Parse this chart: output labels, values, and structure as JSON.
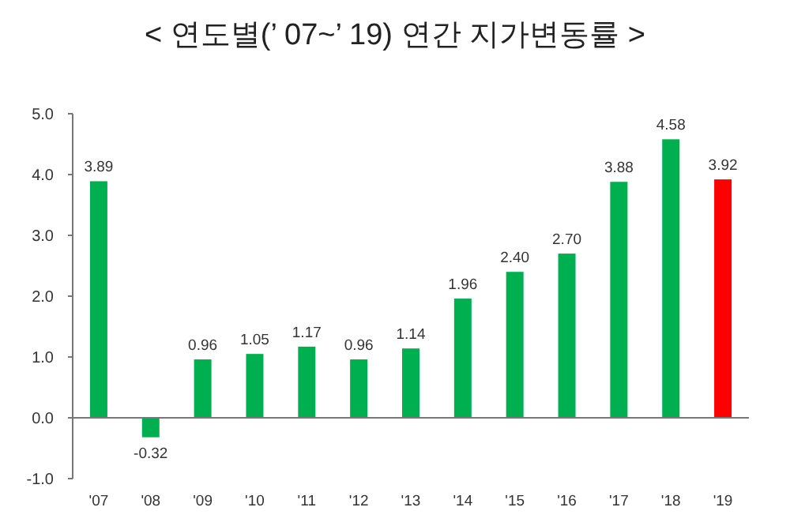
{
  "chart_data": {
    "type": "bar",
    "title": "< 연도별(’ 07~’ 19) 연간 지가변동률 >",
    "categories": [
      "'07",
      "'08",
      "'09",
      "'10",
      "'11",
      "'12",
      "'13",
      "'14",
      "'15",
      "'16",
      "'17",
      "'18",
      "'19"
    ],
    "values": [
      3.89,
      -0.32,
      0.96,
      1.05,
      1.17,
      0.96,
      1.14,
      1.96,
      2.4,
      2.7,
      3.88,
      4.58,
      3.92
    ],
    "value_labels": [
      "3.89",
      "-0.32",
      "0.96",
      "1.05",
      "1.17",
      "0.96",
      "1.14",
      "1.96",
      "2.40",
      "2.70",
      "3.88",
      "4.58",
      "3.92"
    ],
    "colors": [
      "#00b050",
      "#00b050",
      "#00b050",
      "#00b050",
      "#00b050",
      "#00b050",
      "#00b050",
      "#00b050",
      "#00b050",
      "#00b050",
      "#00b050",
      "#00b050",
      "#ff0000"
    ],
    "ylim": [
      -1.0,
      5.0
    ],
    "yticks": [
      {
        "value": 5,
        "label": "5.0"
      },
      {
        "value": 4,
        "label": "4.0"
      },
      {
        "value": 3,
        "label": "3.0"
      },
      {
        "value": 2,
        "label": "2.0"
      },
      {
        "value": 1,
        "label": "1.0"
      },
      {
        "value": 0,
        "label": "0.0"
      },
      {
        "value": -1,
        "label": "-1.0"
      }
    ],
    "legend": false
  }
}
